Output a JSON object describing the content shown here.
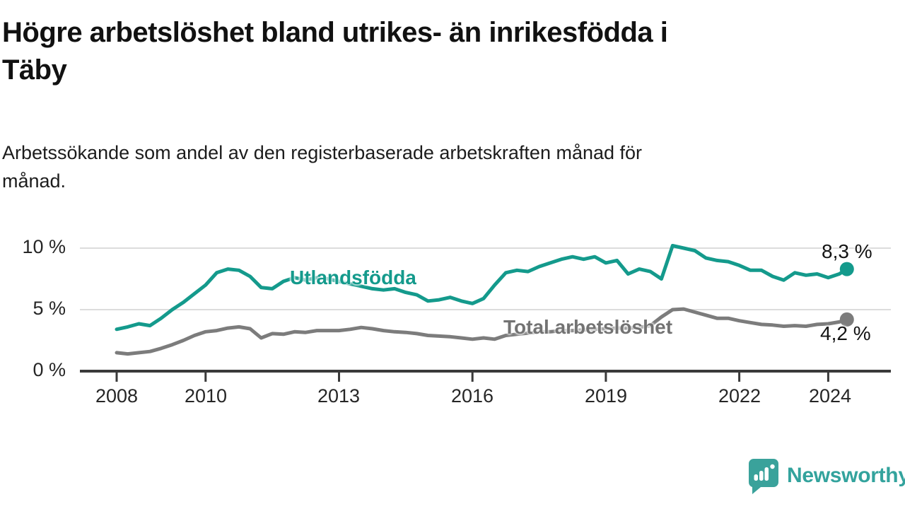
{
  "header": {
    "title_line1": "Högre arbetslöshet bland utrikes- än inrikesfödda i",
    "title_line2": "Täby",
    "subtitle_line1": "Arbetssökande som andel av den registerbaserade arbetskraften månad för",
    "subtitle_line2": "månad."
  },
  "chart_data": {
    "type": "line",
    "title": "Högre arbetslöshet bland utrikes- än inrikesfödda i Täby",
    "subtitle": "Arbetssökande som andel av den registerbaserade arbetskraften månad för månad.",
    "xlabel": "",
    "ylabel": "",
    "xlim": [
      2007.2,
      2025.5
    ],
    "ylim": [
      0,
      11.4
    ],
    "grid": "horizontal",
    "x_ticks": [
      2008,
      2010,
      2013,
      2016,
      2019,
      2022,
      2024
    ],
    "x_tick_labels": [
      "2008",
      "2010",
      "2013",
      "2016",
      "2019",
      "2022",
      "2024"
    ],
    "y_ticks": [
      0,
      5,
      10
    ],
    "y_tick_labels": [
      "0 %",
      "5 %",
      "10 %"
    ],
    "x": [
      2008,
      2008.25,
      2008.5,
      2008.75,
      2009,
      2009.25,
      2009.5,
      2009.75,
      2010,
      2010.25,
      2010.5,
      2010.75,
      2011,
      2011.25,
      2011.5,
      2011.75,
      2012,
      2012.25,
      2012.5,
      2012.75,
      2013,
      2013.25,
      2013.5,
      2013.75,
      2014,
      2014.25,
      2014.5,
      2014.75,
      2015,
      2015.25,
      2015.5,
      2015.75,
      2016,
      2016.25,
      2016.5,
      2016.75,
      2017,
      2017.25,
      2017.5,
      2017.75,
      2018,
      2018.25,
      2018.5,
      2018.75,
      2019,
      2019.25,
      2019.5,
      2019.75,
      2020,
      2020.25,
      2020.5,
      2020.75,
      2021,
      2021.25,
      2021.5,
      2021.75,
      2022,
      2022.25,
      2022.5,
      2022.75,
      2023,
      2023.25,
      2023.5,
      2023.75,
      2024,
      2024.25,
      2024.42
    ],
    "series": [
      {
        "name": "Utlandsfödda",
        "color": "#149a8c",
        "end_label": "8,3 %",
        "end_value": 8.3,
        "values": [
          3.4,
          3.6,
          3.85,
          3.7,
          4.3,
          5.0,
          5.6,
          6.3,
          7.0,
          8.0,
          8.3,
          8.2,
          7.7,
          6.8,
          6.7,
          7.3,
          7.6,
          7.4,
          7.6,
          7.5,
          7.3,
          7.1,
          6.9,
          6.7,
          6.6,
          6.7,
          6.4,
          6.2,
          5.7,
          5.8,
          6.0,
          5.7,
          5.5,
          5.9,
          7.0,
          8.0,
          8.2,
          8.1,
          8.5,
          8.8,
          9.1,
          9.3,
          9.1,
          9.3,
          8.8,
          9.0,
          7.9,
          8.3,
          8.1,
          7.5,
          10.2,
          10.0,
          9.8,
          9.2,
          9.0,
          8.9,
          8.6,
          8.2,
          8.2,
          7.7,
          7.4,
          8.0,
          7.8,
          7.9,
          7.6,
          7.9,
          8.3
        ]
      },
      {
        "name": "Total arbetslöshet",
        "color": "#7c7c7c",
        "end_label": "4,2 %",
        "end_value": 4.2,
        "values": [
          1.5,
          1.4,
          1.5,
          1.6,
          1.85,
          2.15,
          2.5,
          2.9,
          3.2,
          3.3,
          3.5,
          3.6,
          3.45,
          2.7,
          3.05,
          3.0,
          3.2,
          3.15,
          3.3,
          3.3,
          3.3,
          3.4,
          3.55,
          3.45,
          3.3,
          3.2,
          3.15,
          3.05,
          2.9,
          2.85,
          2.8,
          2.7,
          2.6,
          2.7,
          2.6,
          2.9,
          3.0,
          3.1,
          3.2,
          3.2,
          3.3,
          3.3,
          3.35,
          3.4,
          3.45,
          3.5,
          3.5,
          3.55,
          3.7,
          4.4,
          5.0,
          5.05,
          4.8,
          4.55,
          4.3,
          4.3,
          4.1,
          3.95,
          3.8,
          3.75,
          3.65,
          3.7,
          3.65,
          3.8,
          3.85,
          4.0,
          4.2
        ]
      }
    ],
    "legend_position": "inline-labels"
  },
  "footer": {
    "brand": "Newsworthy"
  },
  "colors": {
    "teal": "#149a8c",
    "gray_line": "#7c7c7c",
    "gray_label": "#737373",
    "axis": "#3a3a3a",
    "gridline": "#dcdcdc",
    "brand_teal": "#33a39d"
  }
}
